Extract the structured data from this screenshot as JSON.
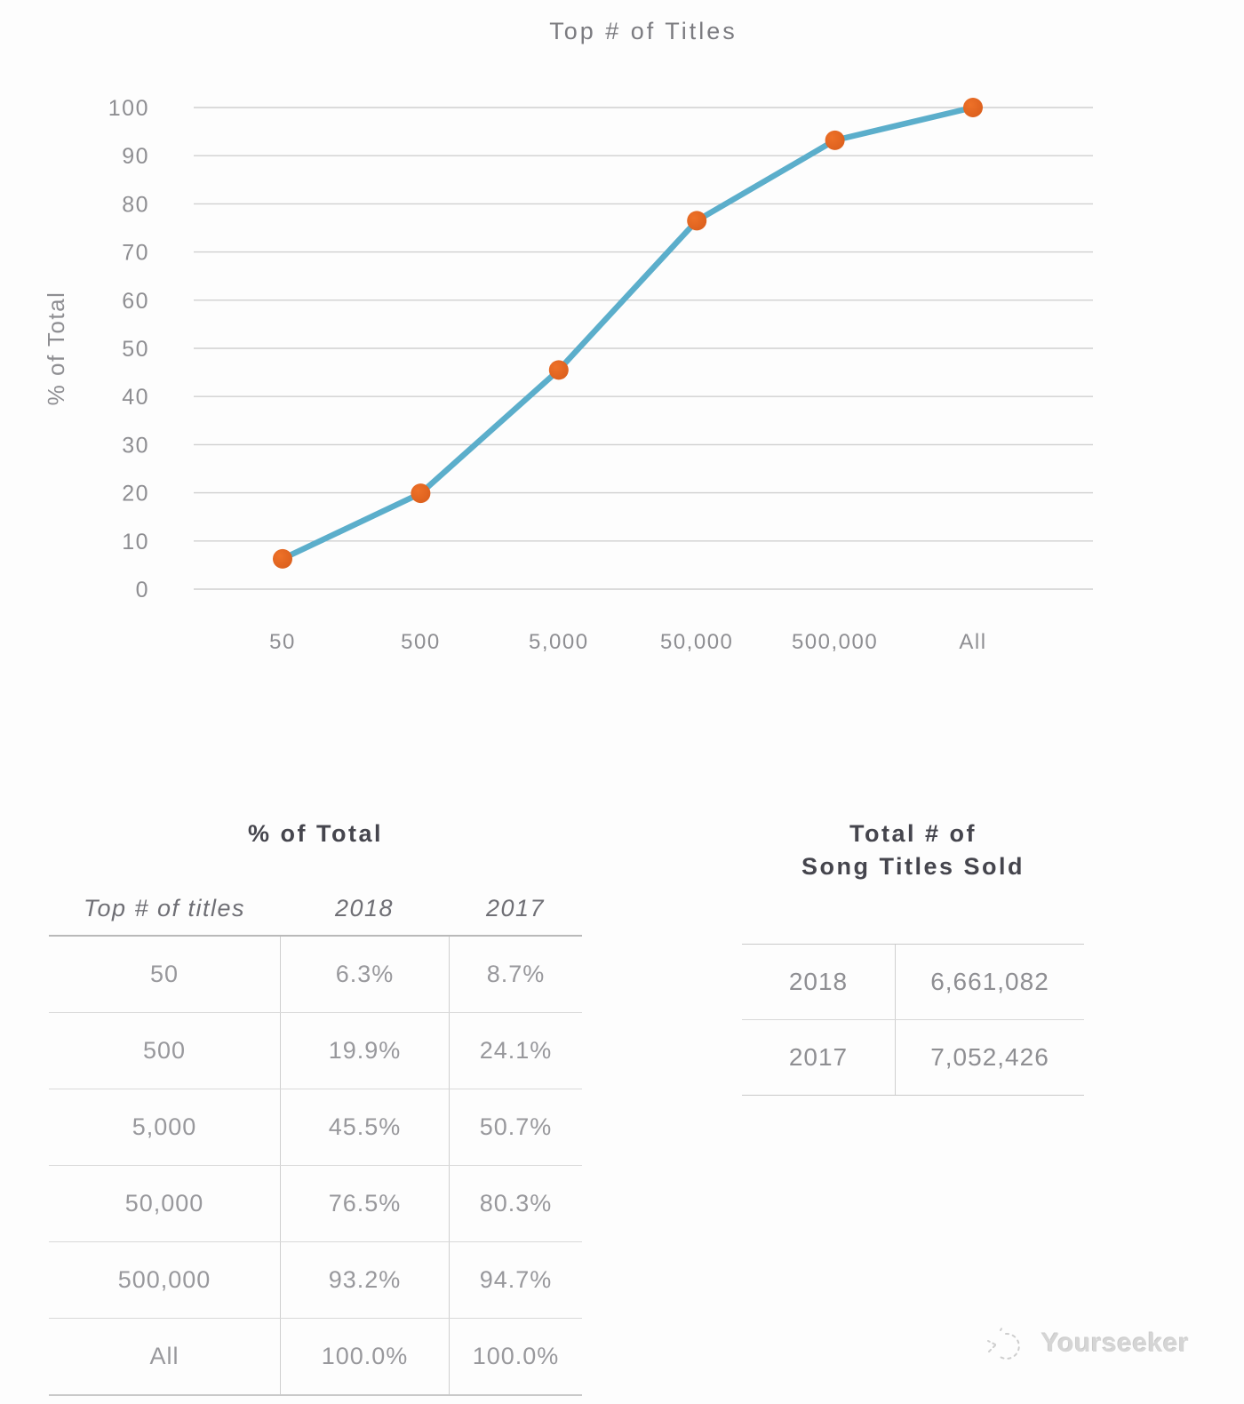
{
  "chart_data": {
    "type": "line",
    "title": "Top # of Titles",
    "x": [
      "50",
      "500",
      "5,000",
      "50,000",
      "500,000",
      "All"
    ],
    "series": [
      {
        "name": "2018",
        "values": [
          6.3,
          19.9,
          45.5,
          76.5,
          93.2,
          100.0
        ]
      }
    ],
    "xlabel": "",
    "ylabel": "% of Total",
    "ylim": [
      0,
      100
    ],
    "ytick_step": 10,
    "grid": true,
    "legend_position": "none",
    "line_color": "#5BAECB",
    "marker_color": "#EE7128",
    "marker_color_dark": "#DB5F1D",
    "gridline_color": "#d0d0d0",
    "tick_label_color": "#8e8e92"
  },
  "tables": {
    "pct_of_total": {
      "title": "% of Total",
      "columns": [
        "Top # of titles",
        "2018",
        "2017"
      ],
      "rows": [
        [
          "50",
          "6.3%",
          "8.7%"
        ],
        [
          "500",
          "19.9%",
          "24.1%"
        ],
        [
          "5,000",
          "45.5%",
          "50.7%"
        ],
        [
          "50,000",
          "76.5%",
          "80.3%"
        ],
        [
          "500,000",
          "93.2%",
          "94.7%"
        ],
        [
          "All",
          "100.0%",
          "100.0%"
        ]
      ]
    },
    "titles_sold": {
      "title_line1": "Total # of",
      "title_line2": "Song Titles Sold",
      "rows": [
        [
          "2018",
          "6,661,082"
        ],
        [
          "2017",
          "7,052,426"
        ]
      ]
    }
  },
  "watermark": {
    "text": "Yourseeker",
    "icon": "sketch-doodle-icon"
  }
}
